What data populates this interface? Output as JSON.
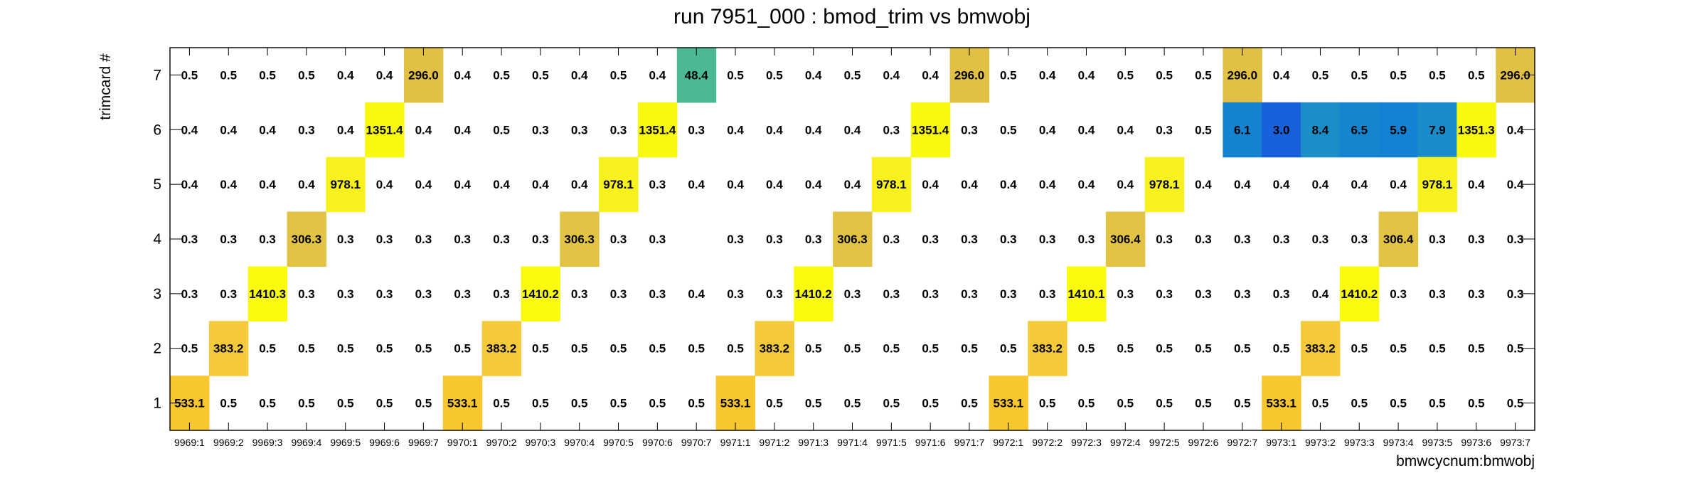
{
  "chart_data": {
    "type": "heatmap",
    "title": "run 7951_000 : bmod_trim vs bmwobj",
    "xlabel": "bmwcycnum:bmwobj",
    "ylabel": "trimcard #",
    "x_categories": [
      "9969:1",
      "9969:2",
      "9969:3",
      "9969:4",
      "9969:5",
      "9969:6",
      "9969:7",
      "9970:1",
      "9970:2",
      "9970:3",
      "9970:4",
      "9970:5",
      "9970:6",
      "9970:7",
      "9971:1",
      "9971:2",
      "9971:3",
      "9971:4",
      "9971:5",
      "9971:6",
      "9971:7",
      "9972:1",
      "9972:2",
      "9972:3",
      "9972:4",
      "9972:5",
      "9972:6",
      "9972:7",
      "9973:1",
      "9973:2",
      "9973:3",
      "9973:4",
      "9973:5",
      "9973:6",
      "9973:7"
    ],
    "y_categories": [
      "1",
      "2",
      "3",
      "4",
      "5",
      "6",
      "7"
    ],
    "rows": [
      {
        "y": "7",
        "values": [
          0.5,
          0.5,
          0.5,
          0.5,
          0.4,
          0.4,
          296.0,
          0.4,
          0.5,
          0.5,
          0.4,
          0.5,
          0.4,
          48.4,
          0.5,
          0.5,
          0.4,
          0.5,
          0.4,
          0.4,
          296.0,
          0.5,
          0.4,
          0.4,
          0.5,
          0.5,
          0.5,
          296.0,
          0.4,
          0.5,
          0.5,
          0.5,
          0.5,
          0.5,
          296.0
        ]
      },
      {
        "y": "6",
        "values": [
          0.4,
          0.4,
          0.4,
          0.3,
          0.4,
          1351.4,
          0.4,
          0.4,
          0.5,
          0.3,
          0.3,
          0.3,
          1351.4,
          0.3,
          0.4,
          0.4,
          0.4,
          0.4,
          0.3,
          1351.4,
          0.3,
          0.5,
          0.4,
          0.4,
          0.4,
          0.3,
          0.5,
          6.1,
          3.0,
          8.4,
          6.5,
          5.9,
          7.9,
          1351.3,
          0.4
        ]
      },
      {
        "y": "5",
        "values": [
          0.4,
          0.4,
          0.4,
          0.4,
          978.1,
          0.4,
          0.4,
          0.4,
          0.4,
          0.4,
          0.4,
          978.1,
          0.3,
          0.4,
          0.4,
          0.4,
          0.4,
          0.4,
          978.1,
          0.4,
          0.4,
          0.4,
          0.4,
          0.4,
          0.4,
          978.1,
          0.4,
          0.4,
          0.4,
          0.4,
          0.4,
          0.4,
          978.1,
          0.4,
          0.4
        ]
      },
      {
        "y": "4",
        "values": [
          0.3,
          0.3,
          0.3,
          306.3,
          0.3,
          0.3,
          0.3,
          0.3,
          0.3,
          0.3,
          306.3,
          0.3,
          0.3,
          null,
          0.3,
          0.3,
          0.3,
          306.3,
          0.3,
          0.3,
          0.3,
          0.3,
          0.3,
          0.3,
          306.4,
          0.3,
          0.3,
          0.3,
          0.3,
          0.3,
          0.3,
          306.4,
          0.3,
          0.3,
          0.3
        ]
      },
      {
        "y": "3",
        "values": [
          0.3,
          0.3,
          1410.3,
          0.3,
          0.3,
          0.3,
          0.3,
          0.3,
          0.3,
          1410.2,
          0.3,
          0.3,
          0.3,
          0.4,
          0.3,
          0.3,
          1410.2,
          0.3,
          0.3,
          0.3,
          0.3,
          0.3,
          0.3,
          1410.1,
          0.3,
          0.3,
          0.3,
          0.3,
          0.3,
          0.4,
          1410.2,
          0.3,
          0.3,
          0.3,
          0.3
        ]
      },
      {
        "y": "2",
        "values": [
          0.5,
          383.2,
          0.5,
          0.5,
          0.5,
          0.5,
          0.5,
          0.5,
          383.2,
          0.5,
          0.5,
          0.5,
          0.5,
          0.5,
          0.5,
          383.2,
          0.5,
          0.5,
          0.5,
          0.5,
          0.5,
          0.5,
          383.2,
          0.5,
          0.5,
          0.5,
          0.5,
          0.5,
          0.5,
          383.2,
          0.5,
          0.5,
          0.5,
          0.5,
          0.5
        ]
      },
      {
        "y": "1",
        "values": [
          533.1,
          0.5,
          0.5,
          0.5,
          0.5,
          0.5,
          0.5,
          533.1,
          0.5,
          0.5,
          0.5,
          0.5,
          0.5,
          0.5,
          533.1,
          0.5,
          0.5,
          0.5,
          0.5,
          0.5,
          0.5,
          533.1,
          0.5,
          0.5,
          0.5,
          0.5,
          0.5,
          0.5,
          533.1,
          0.5,
          0.5,
          0.5,
          0.5,
          0.5,
          0.5
        ]
      }
    ],
    "color_scale": "log",
    "color_stops": [
      {
        "v": 3,
        "color": "#1961dc"
      },
      {
        "v": 6,
        "color": "#1482d2"
      },
      {
        "v": 8,
        "color": "#1a8cc9"
      },
      {
        "v": 48,
        "color": "#4ab991"
      },
      {
        "v": 296,
        "color": "#e1c046"
      },
      {
        "v": 306,
        "color": "#e3c343"
      },
      {
        "v": 383,
        "color": "#f4c93a"
      },
      {
        "v": 533,
        "color": "#f8c62f"
      },
      {
        "v": 978,
        "color": "#f8f11e"
      },
      {
        "v": 1410,
        "color": "#f9fa0e"
      }
    ],
    "color_threshold": 1.0,
    "grid": false,
    "legend": "none"
  }
}
